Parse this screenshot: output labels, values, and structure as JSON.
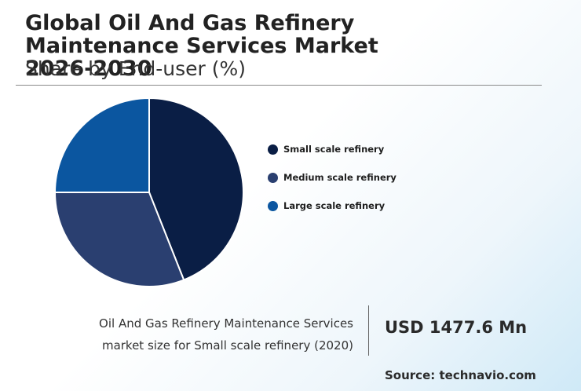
{
  "header": {
    "title": "Global Oil And Gas Refinery Maintenance Services Market 2026-2030",
    "subtitle": "Share by End-user (%)"
  },
  "chart_data": {
    "type": "pie",
    "categories": [
      "Small scale refinery",
      "Medium scale refinery",
      "Large scale refinery"
    ],
    "values": [
      44,
      31,
      25
    ],
    "colors": [
      "#0a1e45",
      "#2a3f70",
      "#0b56a0"
    ],
    "legend_position": "right"
  },
  "stat": {
    "label_line1": "Oil And Gas Refinery Maintenance Services",
    "label_line2": "market size for Small scale refinery (2020)",
    "value": "USD 1477.6 Mn"
  },
  "footer": {
    "source": "Source: technavio.com"
  }
}
